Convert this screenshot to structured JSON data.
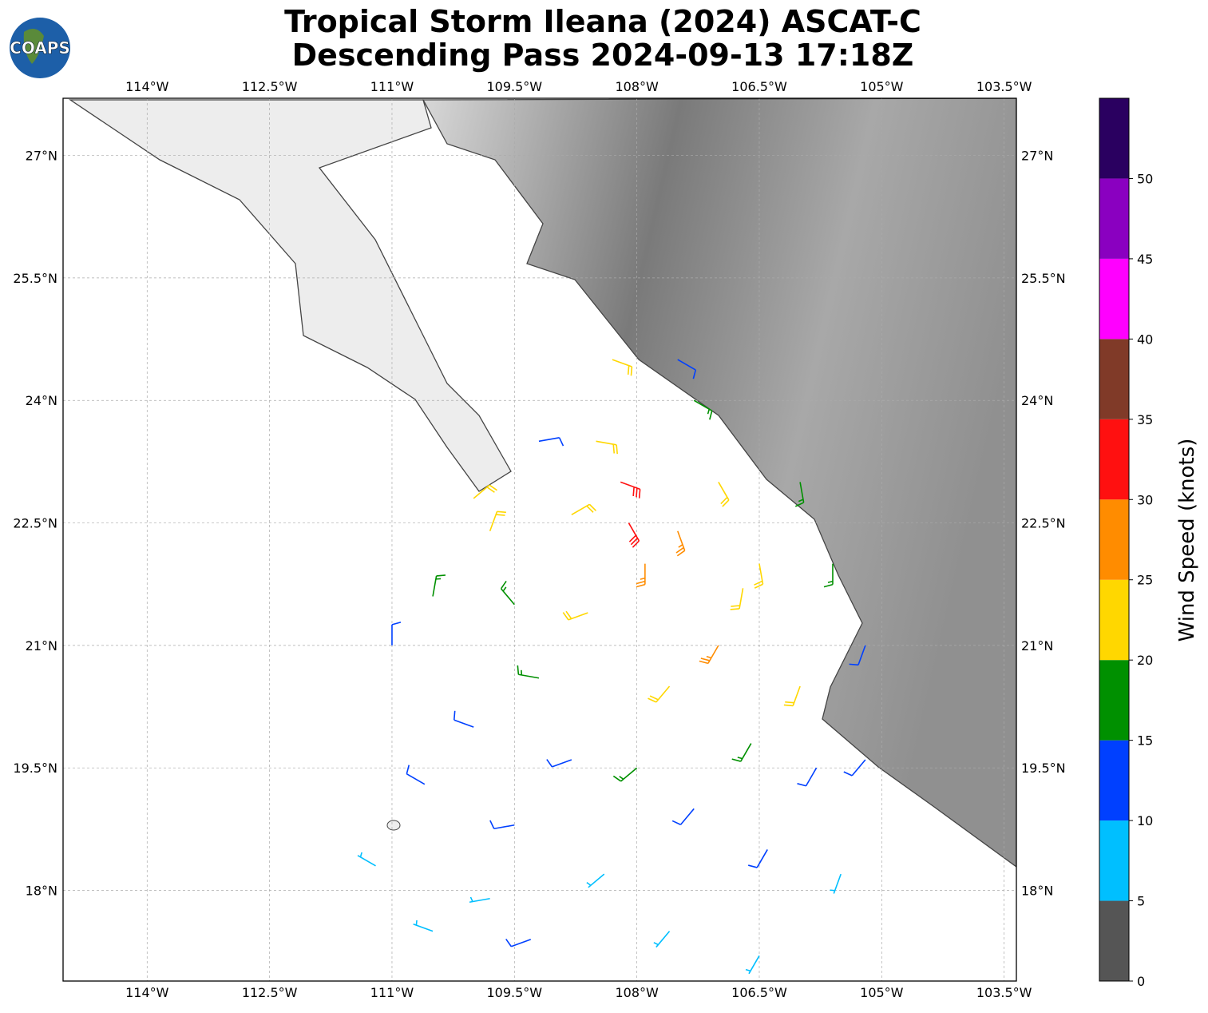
{
  "header": {
    "title": "Tropical Storm Ileana (2024) ASCAT-C",
    "subtitle": "Descending Pass 2024-09-13 17:18Z",
    "logo": "COAPS"
  },
  "map": {
    "lonlim": [
      -115.03,
      -103.35
    ],
    "latlim": [
      16.89,
      27.7
    ],
    "lon_ticks": [
      {
        "value": -114,
        "label": "114°W"
      },
      {
        "value": -112.5,
        "label": "112.5°W"
      },
      {
        "value": -111,
        "label": "111°W"
      },
      {
        "value": -109.5,
        "label": "109.5°W"
      },
      {
        "value": -108,
        "label": "108°W"
      },
      {
        "value": -106.5,
        "label": "106.5°W"
      },
      {
        "value": -105,
        "label": "105°W"
      },
      {
        "value": -103.5,
        "label": "103.5°W"
      }
    ],
    "lat_ticks": [
      {
        "value": 18,
        "label": "18°N"
      },
      {
        "value": 19.5,
        "label": "19.5°N"
      },
      {
        "value": 21,
        "label": "21°N"
      },
      {
        "value": 22.5,
        "label": "22.5°N"
      },
      {
        "value": 24,
        "label": "24°N"
      },
      {
        "value": 25.5,
        "label": "25.5°N"
      },
      {
        "value": 27,
        "label": "27°N"
      }
    ]
  },
  "colorbar": {
    "label": "Wind Speed (knots)",
    "lim": [
      0,
      55
    ],
    "ticks": [
      0,
      5,
      10,
      15,
      20,
      25,
      30,
      35,
      40,
      45,
      50
    ],
    "colors": [
      "#555555",
      "#00bfff",
      "#0040ff",
      "#009000",
      "#ffd700",
      "#ff8c00",
      "#ff1010",
      "#803a28",
      "#ff00ff",
      "#8a00c0",
      "#2a0060"
    ]
  },
  "barbs": [
    [
      -107.5,
      22.4,
      28,
      160
    ],
    [
      -106.5,
      22.0,
      22,
      170
    ],
    [
      -105.6,
      22.0,
      17,
      180
    ],
    [
      -105.2,
      21.0,
      12,
      200
    ],
    [
      -108.5,
      23.5,
      22,
      100
    ],
    [
      -108.3,
      24.5,
      22,
      110
    ],
    [
      -107.3,
      24.0,
      15,
      120
    ],
    [
      -108.2,
      23.0,
      30,
      110
    ],
    [
      -109.8,
      22.4,
      22,
      20
    ],
    [
      -110.5,
      21.6,
      18,
      10
    ],
    [
      -111.0,
      21.0,
      13,
      0
    ],
    [
      -108.6,
      21.4,
      22,
      250
    ],
    [
      -109.2,
      20.6,
      17,
      280
    ],
    [
      -110.0,
      20.0,
      13,
      290
    ],
    [
      -110.6,
      19.3,
      12,
      300
    ],
    [
      -111.2,
      18.3,
      8,
      300
    ],
    [
      -110.5,
      17.5,
      8,
      290
    ],
    [
      -107.6,
      20.5,
      22,
      220
    ],
    [
      -107.0,
      21.0,
      27,
      210
    ],
    [
      -106.6,
      19.8,
      18,
      210
    ],
    [
      -105.8,
      19.5,
      13,
      210
    ],
    [
      -105.2,
      19.6,
      12,
      220
    ],
    [
      -107.3,
      19.0,
      13,
      220
    ],
    [
      -106.4,
      18.5,
      12,
      210
    ],
    [
      -105.5,
      18.2,
      8,
      200
    ],
    [
      -108.4,
      18.2,
      8,
      230
    ],
    [
      -107.6,
      17.5,
      8,
      220
    ],
    [
      -106.5,
      17.2,
      8,
      210
    ],
    [
      -109.3,
      17.4,
      10,
      250
    ],
    [
      -108.0,
      19.5,
      15,
      230
    ],
    [
      -108.8,
      19.6,
      13,
      250
    ],
    [
      -109.5,
      18.8,
      12,
      260
    ],
    [
      -109.8,
      17.9,
      8,
      260
    ],
    [
      -107.9,
      22.0,
      28,
      180
    ],
    [
      -108.1,
      22.5,
      32,
      150
    ],
    [
      -108.8,
      22.6,
      22,
      60
    ],
    [
      -107.0,
      23.0,
      22,
      150
    ],
    [
      -106.0,
      23.0,
      17,
      170
    ],
    [
      -106.0,
      20.5,
      22,
      200
    ],
    [
      -106.7,
      21.7,
      22,
      190
    ],
    [
      -109.5,
      21.5,
      17,
      320
    ],
    [
      -110.0,
      22.8,
      22,
      50
    ],
    [
      -109.2,
      23.5,
      14,
      80
    ],
    [
      -107.5,
      24.5,
      12,
      120
    ]
  ]
}
